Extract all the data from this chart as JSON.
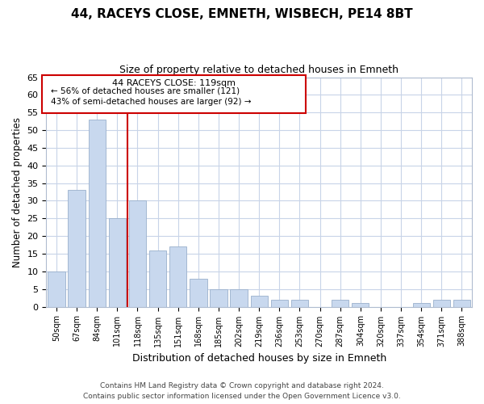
{
  "title": "44, RACEYS CLOSE, EMNETH, WISBECH, PE14 8BT",
  "subtitle": "Size of property relative to detached houses in Emneth",
  "xlabel": "Distribution of detached houses by size in Emneth",
  "ylabel": "Number of detached properties",
  "categories": [
    "50sqm",
    "67sqm",
    "84sqm",
    "101sqm",
    "118sqm",
    "135sqm",
    "151sqm",
    "168sqm",
    "185sqm",
    "202sqm",
    "219sqm",
    "236sqm",
    "253sqm",
    "270sqm",
    "287sqm",
    "304sqm",
    "320sqm",
    "337sqm",
    "354sqm",
    "371sqm",
    "388sqm"
  ],
  "values": [
    10,
    33,
    53,
    25,
    30,
    16,
    17,
    8,
    5,
    5,
    3,
    2,
    2,
    0,
    2,
    1,
    0,
    0,
    1,
    2,
    2
  ],
  "bar_color": "#c8d8ee",
  "bar_edge_color": "#9ab0cc",
  "highlight_line_index": 4,
  "highlight_line_color": "#cc0000",
  "ylim": [
    0,
    65
  ],
  "yticks": [
    0,
    5,
    10,
    15,
    20,
    25,
    30,
    35,
    40,
    45,
    50,
    55,
    60,
    65
  ],
  "annotation_line1": "44 RACEYS CLOSE: 119sqm",
  "annotation_line2": "← 56% of detached houses are smaller (121)",
  "annotation_line3": "43% of semi-detached houses are larger (92) →",
  "footer_line1": "Contains HM Land Registry data © Crown copyright and database right 2024.",
  "footer_line2": "Contains public sector information licensed under the Open Government Licence v3.0.",
  "background_color": "#ffffff",
  "grid_color": "#c8d4e8",
  "spine_color": "#b0bcd0"
}
